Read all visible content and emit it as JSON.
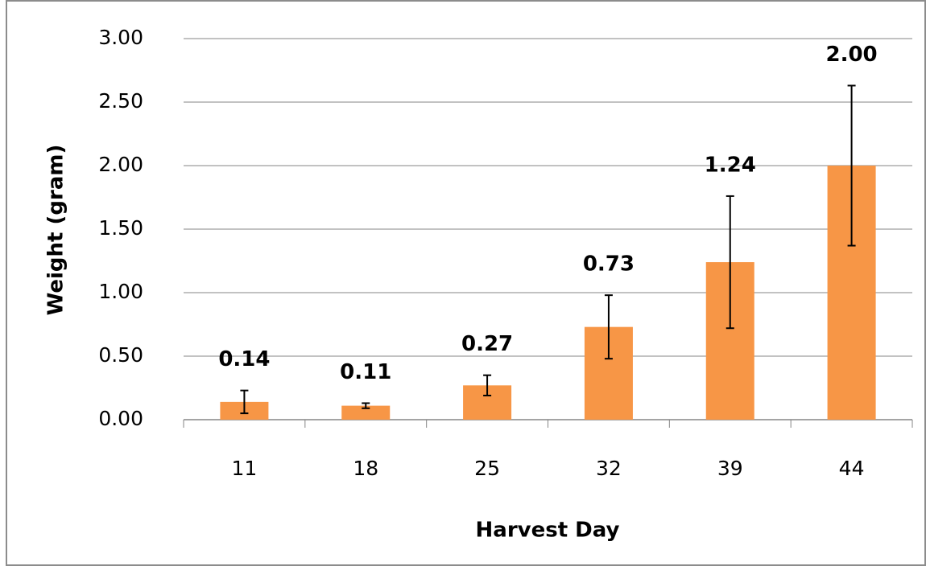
{
  "chart_data": {
    "type": "bar",
    "x_label": "Harvest Day",
    "y_label": "Weight (gram)",
    "categories": [
      "11",
      "18",
      "25",
      "32",
      "39",
      "44"
    ],
    "values": [
      0.14,
      0.11,
      0.27,
      0.73,
      1.24,
      2.0
    ],
    "value_labels": [
      "0.14",
      "0.11",
      "0.27",
      "0.73",
      "1.24",
      "2.00"
    ],
    "errors": [
      0.09,
      0.02,
      0.08,
      0.25,
      0.52,
      0.63
    ],
    "color": "#f79646",
    "ylim": [
      0,
      3
    ],
    "yticks": [
      {
        "value": 0,
        "label": "0.00"
      },
      {
        "value": 0.5,
        "label": "0.50"
      },
      {
        "value": 1,
        "label": "1.00"
      },
      {
        "value": 1.5,
        "label": "1.50"
      },
      {
        "value": 2,
        "label": "2.00"
      },
      {
        "value": 2.5,
        "label": "2.50"
      },
      {
        "value": 3,
        "label": "3.00"
      }
    ],
    "grid": true
  }
}
